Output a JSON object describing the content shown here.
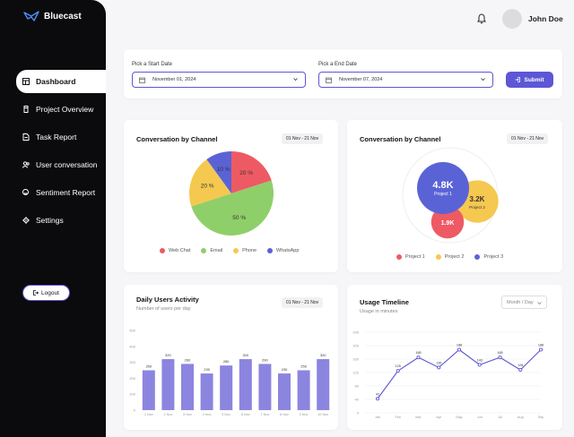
{
  "brand": {
    "name": "Bluecast"
  },
  "sidebar": {
    "items": [
      {
        "label": "Dashboard",
        "icon": "dashboard-icon"
      },
      {
        "label": "Project Overview",
        "icon": "project-icon"
      },
      {
        "label": "Task Report",
        "icon": "report-icon"
      },
      {
        "label": "User conversation",
        "icon": "users-icon"
      },
      {
        "label": "Sentiment Report",
        "icon": "sentiment-icon"
      },
      {
        "label": "Settings",
        "icon": "gear-icon"
      }
    ],
    "logout_label": "Logout"
  },
  "header": {
    "username": "John Doe"
  },
  "filters": {
    "start_label": "Pick a Start Date",
    "start_value": "November 01, 2024",
    "end_label": "Pick a End Date",
    "end_value": "November 07, 2024",
    "submit_label": "Submit"
  },
  "colors": {
    "accent": "#5d56d6",
    "web_chat": "#ee5a63",
    "email": "#8fcf6a",
    "phone": "#f5c84f",
    "whatsapp": "#5a63d6"
  },
  "pie_card": {
    "title": "Conversation by Channel",
    "range": "01 Nov - 21 Nov",
    "legend": [
      "Web Chat",
      "Email",
      "Phone",
      "WhatsApp"
    ]
  },
  "bubble_card": {
    "title": "Conversation by Channel",
    "range": "01 Nov - 21 Nov",
    "legend": [
      "Project 1",
      "Project 2",
      "Project 3"
    ]
  },
  "bar_card": {
    "title": "Daily Users Activity",
    "subtitle": "Number of users per day",
    "range": "01 Nov - 21 Nov"
  },
  "line_card": {
    "title": "Usage Timeline",
    "subtitle": "Usage in minutes",
    "dropdown": "Month / Day"
  },
  "chart_data": [
    {
      "type": "pie",
      "title": "Conversation by Channel",
      "categories": [
        "Web Chat",
        "Email",
        "Phone",
        "WhatsApp"
      ],
      "values": [
        20,
        50,
        20,
        10
      ],
      "labels": [
        "20 %",
        "50 %",
        "20 %",
        "10 %"
      ]
    },
    {
      "type": "scatter",
      "title": "Conversation by Channel",
      "categories": [
        "Project 1",
        "Project 2",
        "Project 3"
      ],
      "values": [
        4800,
        3200,
        1900
      ],
      "labels": [
        "4.8K",
        "3.2K",
        "1.9K"
      ],
      "bubble_names": [
        "Project 1",
        "Project 2",
        ""
      ]
    },
    {
      "type": "bar",
      "title": "Daily Users Activity",
      "categories": [
        "1 Nov",
        "2 Nov",
        "3 Nov",
        "4 Nov",
        "5 Nov",
        "6 Nov",
        "7 Nov",
        "8 Nov",
        "9 Nov",
        "10 Nov"
      ],
      "values": [
        250,
        320,
        290,
        230,
        280,
        320,
        290,
        230,
        250,
        320
      ],
      "yticks": [
        0,
        100,
        200,
        300,
        400,
        500
      ],
      "ylim": [
        0,
        500
      ]
    },
    {
      "type": "line",
      "title": "Usage Timeline",
      "categories": [
        "Jan",
        "Feb",
        "Mar",
        "Apr",
        "May",
        "Jun",
        "Jul",
        "Aug",
        "Sep"
      ],
      "values": [
        42,
        125,
        165,
        135,
        188,
        143,
        165,
        128,
        188
      ],
      "yticks": [
        0,
        40,
        80,
        120,
        160,
        200,
        240
      ],
      "ylim": [
        0,
        240
      ]
    }
  ]
}
